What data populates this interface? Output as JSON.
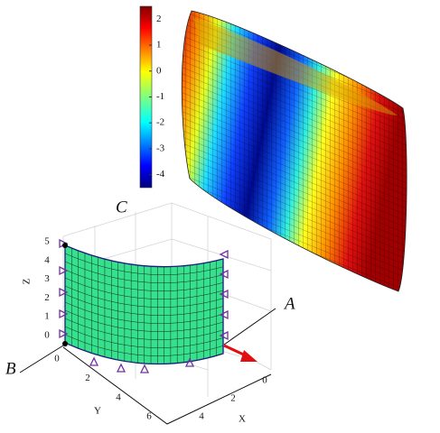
{
  "colorbar": {
    "lim": [
      -4.5,
      2.5
    ],
    "ticks": [
      2,
      1,
      0,
      -1,
      -2,
      -3,
      -4
    ]
  },
  "annotations": {
    "a": "A",
    "b": "B",
    "c": "C"
  },
  "axes": {
    "z": {
      "label": "Z",
      "ticks": [
        0,
        1,
        2,
        3,
        4,
        5
      ]
    },
    "y": {
      "label": "Y",
      "ticks": [
        0,
        2,
        4,
        6
      ]
    },
    "x": {
      "label": "X",
      "ticks": [
        0,
        2,
        4
      ]
    }
  }
}
